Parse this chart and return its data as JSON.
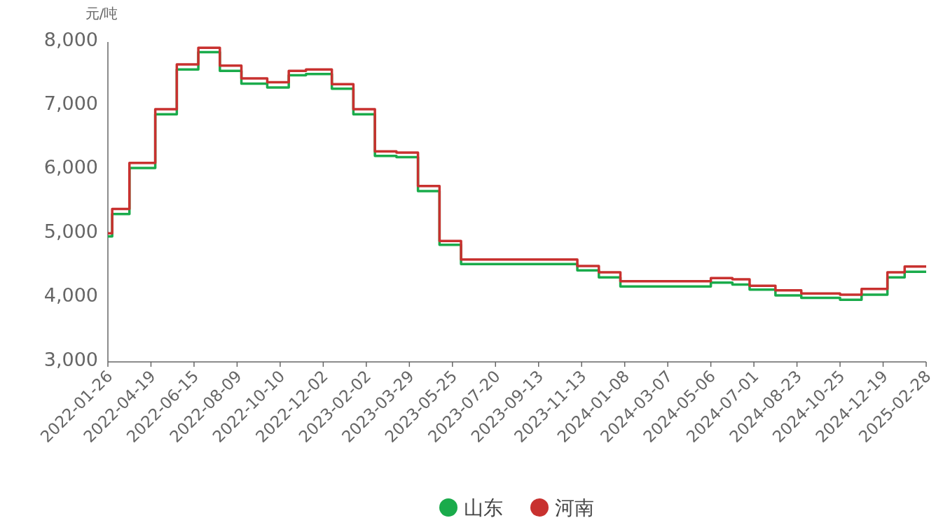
{
  "chart_data": {
    "type": "step",
    "ylabel": "元/吨",
    "legend": "bottom",
    "categories": [
      "2022-01-26",
      null,
      null,
      null,
      null,
      null,
      null,
      null,
      null,
      null,
      "2022-04-19",
      null,
      null,
      null,
      null,
      null,
      null,
      null,
      null,
      null,
      "2022-06-15",
      null,
      null,
      null,
      null,
      null,
      null,
      null,
      null,
      null,
      "2022-08-09",
      null,
      null,
      null,
      null,
      null,
      null,
      null,
      null,
      null,
      "2022-10-10",
      null,
      null,
      null,
      null,
      null,
      null,
      null,
      null,
      null,
      "2022-12-02",
      null,
      null,
      null,
      null,
      null,
      null,
      null,
      null,
      null,
      "2023-02-02",
      null,
      null,
      null,
      null,
      null,
      null,
      null,
      null,
      null,
      "2023-03-29",
      null,
      null,
      null,
      null,
      null,
      null,
      null,
      null,
      null,
      "2023-05-25",
      null,
      null,
      null,
      null,
      null,
      null,
      null,
      null,
      null,
      "2023-07-20",
      null,
      null,
      null,
      null,
      null,
      null,
      null,
      null,
      null,
      "2023-09-13",
      null,
      null,
      null,
      null,
      null,
      null,
      null,
      null,
      null,
      "2023-11-13",
      null,
      null,
      null,
      null,
      null,
      null,
      null,
      null,
      null,
      "2024-01-08",
      null,
      null,
      null,
      null,
      null,
      null,
      null,
      null,
      null,
      "2024-03-07",
      null,
      null,
      null,
      null,
      null,
      null,
      null,
      null,
      null,
      "2024-05-06",
      null,
      null,
      null,
      null,
      null,
      null,
      null,
      null,
      null,
      "2024-07-01",
      null,
      null,
      null,
      null,
      null,
      null,
      null,
      null,
      null,
      "2024-08-23",
      null,
      null,
      null,
      null,
      null,
      null,
      null,
      null,
      null,
      "2024-10-25",
      null,
      null,
      null,
      null,
      null,
      null,
      null,
      null,
      null,
      "2024-12-19",
      null,
      null,
      null,
      null,
      null,
      null,
      null,
      null,
      null,
      "2025-02-28"
    ],
    "ylim": [
      3000,
      8000
    ],
    "yticks": [
      {
        "value": 3000,
        "label": "3,000"
      },
      {
        "value": 4000,
        "label": "4,000"
      },
      {
        "value": 5000,
        "label": "5,000"
      },
      {
        "value": 6000,
        "label": "6,000"
      },
      {
        "value": 7000,
        "label": "7,000"
      },
      {
        "value": 8000,
        "label": "8,000"
      }
    ],
    "series": [
      {
        "name": "山东",
        "color": "#1aab4b",
        "values": [
          4960,
          5310,
          5310,
          5310,
          5310,
          6030,
          6030,
          6030,
          6030,
          6030,
          6030,
          6870,
          6870,
          6870,
          6870,
          6870,
          7570,
          7570,
          7570,
          7570,
          7570,
          7840,
          7840,
          7840,
          7840,
          7840,
          7550,
          7550,
          7550,
          7550,
          7550,
          7350,
          7350,
          7350,
          7350,
          7350,
          7350,
          7290,
          7290,
          7290,
          7290,
          7290,
          7480,
          7480,
          7480,
          7480,
          7500,
          7500,
          7500,
          7500,
          7500,
          7500,
          7270,
          7270,
          7270,
          7270,
          7270,
          6870,
          6870,
          6870,
          6870,
          6870,
          6220,
          6220,
          6220,
          6220,
          6220,
          6200,
          6200,
          6200,
          6200,
          6200,
          5670,
          5670,
          5670,
          5670,
          5670,
          4830,
          4830,
          4830,
          4830,
          4830,
          4530,
          4530,
          4530,
          4530,
          4530,
          4530,
          4530,
          4530,
          4530,
          4530,
          4530,
          4530,
          4530,
          4530,
          4530,
          4530,
          4530,
          4530,
          4530,
          4530,
          4530,
          4530,
          4530,
          4530,
          4530,
          4530,
          4530,
          4430,
          4430,
          4430,
          4430,
          4430,
          4320,
          4320,
          4320,
          4320,
          4320,
          4180,
          4180,
          4180,
          4180,
          4180,
          4180,
          4180,
          4180,
          4180,
          4180,
          4180,
          4180,
          4180,
          4180,
          4180,
          4180,
          4180,
          4180,
          4180,
          4180,
          4180,
          4240,
          4240,
          4240,
          4240,
          4240,
          4210,
          4210,
          4210,
          4210,
          4130,
          4130,
          4130,
          4130,
          4130,
          4130,
          4040,
          4040,
          4040,
          4040,
          4040,
          4040,
          4000,
          4000,
          4000,
          4000,
          4000,
          4000,
          4000,
          4000,
          4000,
          3970,
          3970,
          3970,
          3970,
          3970,
          4050,
          4050,
          4050,
          4050,
          4050,
          4050,
          4320,
          4320,
          4320,
          4320,
          4410,
          4410,
          4410,
          4410,
          4410,
          4410
        ]
      },
      {
        "name": "河南",
        "color": "#c8312f",
        "values": [
          5010,
          5390,
          5390,
          5390,
          5390,
          6110,
          6110,
          6110,
          6110,
          6110,
          6110,
          6950,
          6950,
          6950,
          6950,
          6950,
          7650,
          7650,
          7650,
          7650,
          7650,
          7910,
          7910,
          7910,
          7910,
          7910,
          7630,
          7630,
          7630,
          7630,
          7630,
          7430,
          7430,
          7430,
          7430,
          7430,
          7430,
          7370,
          7370,
          7370,
          7370,
          7370,
          7550,
          7550,
          7550,
          7550,
          7570,
          7570,
          7570,
          7570,
          7570,
          7570,
          7340,
          7340,
          7340,
          7340,
          7340,
          6950,
          6950,
          6950,
          6950,
          6950,
          6290,
          6290,
          6290,
          6290,
          6290,
          6270,
          6270,
          6270,
          6270,
          6270,
          5750,
          5750,
          5750,
          5750,
          5750,
          4890,
          4890,
          4890,
          4890,
          4890,
          4600,
          4600,
          4600,
          4600,
          4600,
          4600,
          4600,
          4600,
          4600,
          4600,
          4600,
          4600,
          4600,
          4600,
          4600,
          4600,
          4600,
          4600,
          4600,
          4600,
          4600,
          4600,
          4600,
          4600,
          4600,
          4600,
          4600,
          4500,
          4500,
          4500,
          4500,
          4500,
          4400,
          4400,
          4400,
          4400,
          4400,
          4260,
          4260,
          4260,
          4260,
          4260,
          4260,
          4260,
          4260,
          4260,
          4260,
          4260,
          4260,
          4260,
          4260,
          4260,
          4260,
          4260,
          4260,
          4260,
          4260,
          4260,
          4310,
          4310,
          4310,
          4310,
          4310,
          4290,
          4290,
          4290,
          4290,
          4190,
          4190,
          4190,
          4190,
          4190,
          4190,
          4120,
          4120,
          4120,
          4120,
          4120,
          4120,
          4070,
          4070,
          4070,
          4070,
          4070,
          4070,
          4070,
          4070,
          4070,
          4050,
          4050,
          4050,
          4050,
          4050,
          4140,
          4140,
          4140,
          4140,
          4140,
          4140,
          4400,
          4400,
          4400,
          4400,
          4490,
          4490,
          4490,
          4490,
          4490,
          4490
        ]
      }
    ]
  }
}
